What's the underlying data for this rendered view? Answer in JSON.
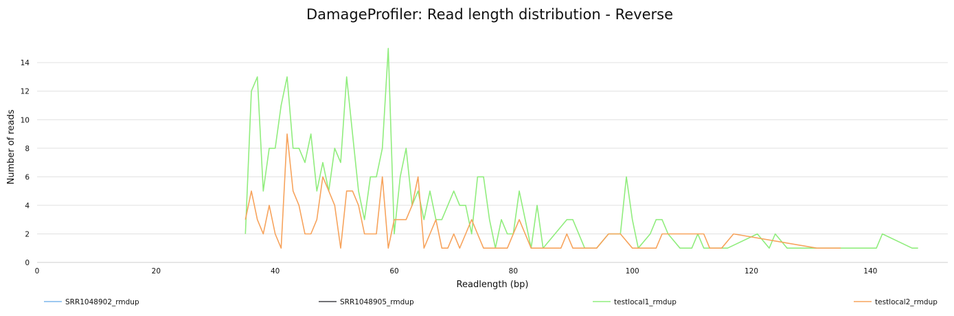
{
  "chart_data": {
    "type": "line",
    "title": "DamageProfiler: Read length distribution - Reverse",
    "xlabel": "Readlength (bp)",
    "ylabel": "Number of reads",
    "xlim": [
      0,
      153
    ],
    "ylim": [
      0,
      15.5
    ],
    "x_ticks": [
      0,
      20,
      40,
      60,
      80,
      100,
      120,
      140
    ],
    "y_ticks": [
      0,
      2,
      4,
      6,
      8,
      10,
      12,
      14
    ],
    "grid": true,
    "legend_position": "bottom",
    "series": [
      {
        "name": "SRR1048902_rmdup",
        "color": "#7cb5ec",
        "points": []
      },
      {
        "name": "SRR1048905_rmdup",
        "color": "#434348",
        "points": []
      },
      {
        "name": "testlocal1_rmdup",
        "color": "#90ed7d",
        "points": [
          [
            35,
            2
          ],
          [
            36,
            12
          ],
          [
            37,
            13
          ],
          [
            38,
            5
          ],
          [
            39,
            8
          ],
          [
            40,
            8
          ],
          [
            41,
            11
          ],
          [
            42,
            13
          ],
          [
            43,
            8
          ],
          [
            44,
            8
          ],
          [
            45,
            7
          ],
          [
            46,
            9
          ],
          [
            47,
            5
          ],
          [
            48,
            7
          ],
          [
            49,
            5
          ],
          [
            50,
            8
          ],
          [
            51,
            7
          ],
          [
            52,
            13
          ],
          [
            53,
            9
          ],
          [
            54,
            5
          ],
          [
            55,
            3
          ],
          [
            56,
            6
          ],
          [
            57,
            6
          ],
          [
            58,
            8
          ],
          [
            59,
            15
          ],
          [
            60,
            2
          ],
          [
            61,
            6
          ],
          [
            62,
            8
          ],
          [
            63,
            4
          ],
          [
            64,
            5
          ],
          [
            65,
            3
          ],
          [
            66,
            5
          ],
          [
            67,
            3
          ],
          [
            68,
            3
          ],
          [
            69,
            4
          ],
          [
            70,
            5
          ],
          [
            71,
            4
          ],
          [
            72,
            4
          ],
          [
            73,
            2
          ],
          [
            74,
            6
          ],
          [
            75,
            6
          ],
          [
            76,
            3
          ],
          [
            77,
            1
          ],
          [
            78,
            3
          ],
          [
            79,
            2
          ],
          [
            80,
            2
          ],
          [
            81,
            5
          ],
          [
            82,
            3
          ],
          [
            83,
            1
          ],
          [
            84,
            4
          ],
          [
            85,
            1
          ],
          [
            89,
            3
          ],
          [
            90,
            3
          ],
          [
            92,
            1
          ],
          [
            94,
            1
          ],
          [
            96,
            2
          ],
          [
            98,
            2
          ],
          [
            99,
            6
          ],
          [
            100,
            3
          ],
          [
            101,
            1
          ],
          [
            103,
            2
          ],
          [
            104,
            3
          ],
          [
            105,
            3
          ],
          [
            106,
            2
          ],
          [
            108,
            1
          ],
          [
            110,
            1
          ],
          [
            111,
            2
          ],
          [
            112,
            1
          ],
          [
            116,
            1
          ],
          [
            121,
            2
          ],
          [
            123,
            1
          ],
          [
            124,
            2
          ],
          [
            126,
            1
          ],
          [
            131,
            1
          ],
          [
            136,
            1
          ],
          [
            141,
            1
          ],
          [
            142,
            2
          ],
          [
            147,
            1
          ],
          [
            148,
            1
          ]
        ]
      },
      {
        "name": "testlocal2_rmdup",
        "color": "#f7a35c",
        "points": [
          [
            35,
            3
          ],
          [
            36,
            5
          ],
          [
            37,
            3
          ],
          [
            38,
            2
          ],
          [
            39,
            4
          ],
          [
            40,
            2
          ],
          [
            41,
            1
          ],
          [
            42,
            9
          ],
          [
            43,
            5
          ],
          [
            44,
            4
          ],
          [
            45,
            2
          ],
          [
            46,
            2
          ],
          [
            47,
            3
          ],
          [
            48,
            6
          ],
          [
            49,
            5
          ],
          [
            50,
            4
          ],
          [
            51,
            1
          ],
          [
            52,
            5
          ],
          [
            53,
            5
          ],
          [
            54,
            4
          ],
          [
            55,
            2
          ],
          [
            56,
            2
          ],
          [
            57,
            2
          ],
          [
            58,
            6
          ],
          [
            59,
            1
          ],
          [
            60,
            3
          ],
          [
            61,
            3
          ],
          [
            62,
            3
          ],
          [
            63,
            4
          ],
          [
            64,
            6
          ],
          [
            65,
            1
          ],
          [
            66,
            2
          ],
          [
            67,
            3
          ],
          [
            68,
            1
          ],
          [
            69,
            1
          ],
          [
            70,
            2
          ],
          [
            71,
            1
          ],
          [
            72,
            2
          ],
          [
            73,
            3
          ],
          [
            74,
            2
          ],
          [
            75,
            1
          ],
          [
            76,
            1
          ],
          [
            77,
            1
          ],
          [
            78,
            1
          ],
          [
            79,
            1
          ],
          [
            81,
            3
          ],
          [
            83,
            1
          ],
          [
            84,
            1
          ],
          [
            85,
            1
          ],
          [
            86,
            1
          ],
          [
            87,
            1
          ],
          [
            88,
            1
          ],
          [
            89,
            2
          ],
          [
            90,
            1
          ],
          [
            91,
            1
          ],
          [
            92,
            1
          ],
          [
            93,
            1
          ],
          [
            94,
            1
          ],
          [
            96,
            2
          ],
          [
            97,
            2
          ],
          [
            98,
            2
          ],
          [
            100,
            1
          ],
          [
            101,
            1
          ],
          [
            102,
            1
          ],
          [
            103,
            1
          ],
          [
            104,
            1
          ],
          [
            105,
            2
          ],
          [
            106,
            2
          ],
          [
            107,
            2
          ],
          [
            108,
            2
          ],
          [
            109,
            2
          ],
          [
            110,
            2
          ],
          [
            111,
            2
          ],
          [
            112,
            2
          ],
          [
            113,
            1
          ],
          [
            114,
            1
          ],
          [
            115,
            1
          ],
          [
            117,
            2
          ],
          [
            131,
            1
          ],
          [
            133,
            1
          ],
          [
            135,
            1
          ]
        ]
      }
    ]
  }
}
